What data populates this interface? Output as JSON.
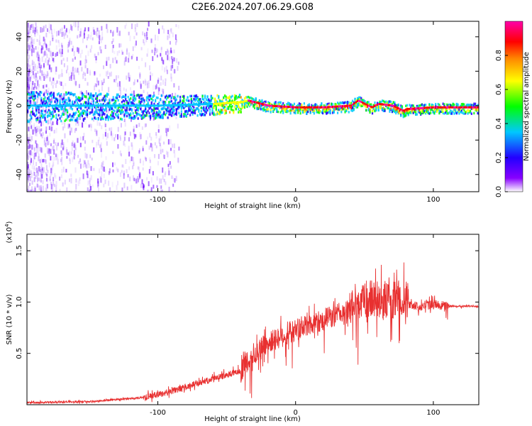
{
  "title": "C2E6.2024.207.06.29.G08",
  "chart_data": [
    {
      "type": "heatmap",
      "title": "C2E6.2024.207.06.29.G08",
      "xlabel": "Height of straight line (km)",
      "ylabel": "Frequency (Hz)",
      "xlim": [
        -195,
        133
      ],
      "ylim": [
        -50,
        49
      ],
      "xticks": [
        -100,
        0,
        100
      ],
      "yticks": [
        -40,
        -20,
        0,
        20,
        40
      ],
      "colorbar": {
        "label": "Normalized spectral amplitude",
        "range": [
          0,
          1
        ],
        "ticks": [
          "0.0",
          "0.2",
          "0.4",
          "0.6",
          "0.8"
        ],
        "colors": [
          "#ffffff",
          "#8800ff",
          "#2200ff",
          "#00c8ff",
          "#00ff00",
          "#ffff00",
          "#ff8800",
          "#ff0000",
          "#ff00aa"
        ]
      },
      "ridge": {
        "x": [
          -195,
          -150,
          -100,
          -60,
          -40,
          -35,
          -20,
          0,
          20,
          40,
          45,
          55,
          60,
          70,
          78,
          80,
          100,
          133
        ],
        "y": [
          0,
          0,
          0,
          1,
          2,
          3,
          0,
          -1,
          -1,
          0,
          3,
          -1,
          1,
          0,
          -3,
          -2,
          -1,
          -1
        ]
      }
    },
    {
      "type": "line",
      "xlabel": "Height of straight line (km)",
      "ylabel": "SNR (10 * v/v)",
      "y_scale_label": "(x10",
      "y_scale_exp": "4",
      "y_scale_close": ")",
      "xlim": [
        -195,
        133
      ],
      "ylim": [
        0,
        16600
      ],
      "xticks": [
        -100,
        0,
        100
      ],
      "yticks": [
        5000,
        10000,
        15000
      ],
      "ytick_labels": [
        "0.5",
        "1.0",
        "1.5"
      ],
      "color": "#e83030",
      "envelope": {
        "x": [
          -195,
          -150,
          -110,
          -90,
          -60,
          -40,
          -30,
          -20,
          0,
          20,
          40,
          50,
          60,
          70,
          80,
          82,
          90,
          100,
          110,
          133
        ],
        "y": [
          200,
          300,
          700,
          1300,
          2500,
          3300,
          5000,
          6000,
          7300,
          8300,
          9200,
          10200,
          10300,
          10100,
          10500,
          9800,
          9500,
          9800,
          9600,
          9600
        ]
      }
    }
  ]
}
